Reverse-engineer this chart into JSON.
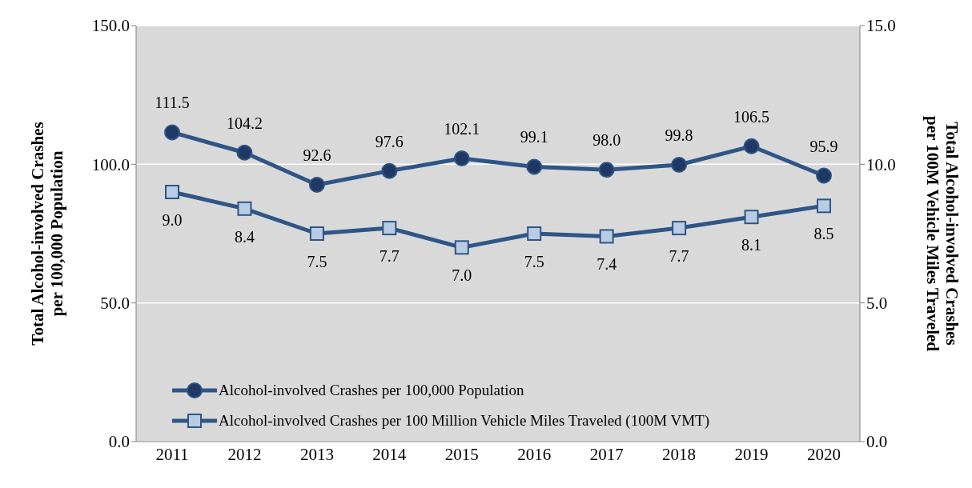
{
  "chart_data": {
    "type": "line",
    "categories": [
      "2011",
      "2012",
      "2013",
      "2014",
      "2015",
      "2016",
      "2017",
      "2018",
      "2019",
      "2020"
    ],
    "ylabel": "Total Alcohol-involved Crashes per 100,000 Population",
    "y2label": "Total Alcohol-involved Crashes per 100M Vehicle Miles Traveled",
    "ylim": [
      0,
      150
    ],
    "yticks": [
      {
        "value": 0,
        "label": "0.0"
      },
      {
        "value": 50,
        "label": "50.0"
      },
      {
        "value": 100,
        "label": "100.0"
      },
      {
        "value": 150,
        "label": "150.0"
      }
    ],
    "y2lim": [
      0,
      15
    ],
    "y2ticks": [
      {
        "value": 0,
        "label": "0.0"
      },
      {
        "value": 5,
        "label": "5.0"
      },
      {
        "value": 10,
        "label": "10.0"
      },
      {
        "value": 15,
        "label": "15.0"
      }
    ],
    "grid": "y",
    "legend": "bottom left",
    "series": [
      {
        "name": "Alcohol-involved Crashes per 100,000 Population",
        "color": "#2e5586",
        "marker": "circle",
        "values": [
          111.5,
          104.2,
          92.6,
          97.6,
          102.1,
          99.1,
          98.0,
          99.8,
          106.5,
          95.9
        ],
        "value_labels": [
          "111.5",
          "104.2",
          "92.6",
          "97.6",
          "102.1",
          "99.1",
          "98.0",
          "99.8",
          "106.5",
          "95.9"
        ]
      },
      {
        "name": "Alcohol-involved Crashes per 100 Million Vehicle Miles Traveled (100M VMT)",
        "color": "#2e5586",
        "marker": "square",
        "axis": "y2",
        "values": [
          9.0,
          8.4,
          7.5,
          7.7,
          7.0,
          7.5,
          7.4,
          7.7,
          8.1,
          8.5
        ],
        "value_labels": [
          "9.0",
          "8.4",
          "7.5",
          "7.7",
          "7.0",
          "7.5",
          "7.4",
          "7.7",
          "8.1",
          "8.5"
        ]
      }
    ]
  }
}
